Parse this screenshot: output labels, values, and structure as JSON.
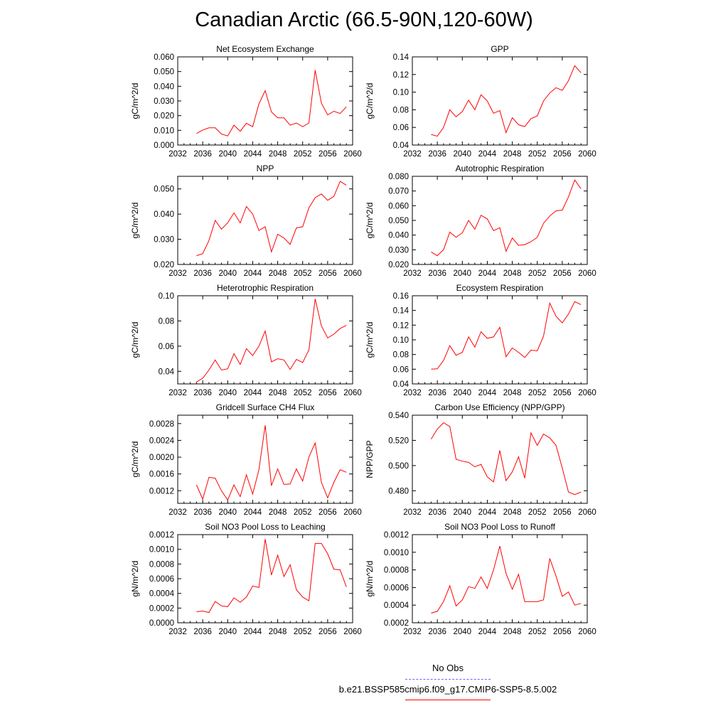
{
  "page": {
    "title": "Canadian Arctic (66.5-90N,120-60W)"
  },
  "legend": {
    "entries": [
      {
        "label": "No Obs",
        "color": "#6666ff",
        "style": "dashed"
      },
      {
        "label": "b.e21.BSSP585cmip6.f09_g17.CMIP6-SSP5-8.5.002",
        "color": "#ff0000",
        "style": "solid"
      }
    ]
  },
  "chart_data": [
    {
      "type": "line",
      "title": "Net Ecosystem Exchange",
      "xlabel": "",
      "ylabel": "gC/m^2/d",
      "xlim": [
        2032,
        2060
      ],
      "xticks": [
        2032,
        2036,
        2040,
        2044,
        2048,
        2052,
        2056,
        2060
      ],
      "ylim": [
        0.0,
        0.06
      ],
      "yticks": [
        "0.000",
        "0.010",
        "0.020",
        "0.030",
        "0.040",
        "0.050",
        "0.060"
      ],
      "series": [
        {
          "color": "#ff0000",
          "x": [
            2035,
            2036,
            2037,
            2038,
            2039,
            2040,
            2041,
            2042,
            2043,
            2044,
            2045,
            2046,
            2047,
            2048,
            2049,
            2050,
            2051,
            2052,
            2053,
            2054,
            2055,
            2056,
            2057,
            2058,
            2059
          ],
          "y": [
            0.0079,
            0.0102,
            0.0117,
            0.0117,
            0.0075,
            0.0062,
            0.0135,
            0.0094,
            0.0148,
            0.0125,
            0.028,
            0.037,
            0.0225,
            0.0185,
            0.0185,
            0.0135,
            0.015,
            0.0125,
            0.015,
            0.051,
            0.0285,
            0.0205,
            0.023,
            0.0215,
            0.026
          ]
        }
      ]
    },
    {
      "type": "line",
      "title": "GPP",
      "xlabel": "",
      "ylabel": "gC/m^2/d",
      "xlim": [
        2032,
        2060
      ],
      "xticks": [
        2032,
        2036,
        2040,
        2044,
        2048,
        2052,
        2056,
        2060
      ],
      "ylim": [
        0.04,
        0.14
      ],
      "yticks": [
        "0.04",
        "0.06",
        "0.08",
        "0.10",
        "0.12",
        "0.14"
      ],
      "series": [
        {
          "color": "#ff0000",
          "x": [
            2035,
            2036,
            2037,
            2038,
            2039,
            2040,
            2041,
            2042,
            2043,
            2044,
            2045,
            2046,
            2047,
            2048,
            2049,
            2050,
            2051,
            2052,
            2053,
            2054,
            2055,
            2056,
            2057,
            2058,
            2059
          ],
          "y": [
            0.052,
            0.05,
            0.06,
            0.08,
            0.072,
            0.078,
            0.091,
            0.08,
            0.097,
            0.09,
            0.076,
            0.079,
            0.054,
            0.071,
            0.063,
            0.061,
            0.07,
            0.073,
            0.09,
            0.099,
            0.105,
            0.102,
            0.113,
            0.13,
            0.122
          ]
        }
      ]
    },
    {
      "type": "line",
      "title": "NPP",
      "xlabel": "",
      "ylabel": "gC/m^2/d",
      "xlim": [
        2032,
        2060
      ],
      "xticks": [
        2032,
        2036,
        2040,
        2044,
        2048,
        2052,
        2056,
        2060
      ],
      "ylim": [
        0.02,
        0.055
      ],
      "yticks": [
        "0.020",
        "0.030",
        "0.040",
        "0.050"
      ],
      "series": [
        {
          "color": "#ff0000",
          "x": [
            2035,
            2036,
            2037,
            2038,
            2039,
            2040,
            2041,
            2042,
            2043,
            2044,
            2045,
            2046,
            2047,
            2048,
            2049,
            2050,
            2051,
            2052,
            2053,
            2054,
            2055,
            2056,
            2057,
            2058,
            2059
          ],
          "y": [
            0.0235,
            0.0243,
            0.0295,
            0.0375,
            0.034,
            0.0365,
            0.0405,
            0.0365,
            0.043,
            0.04,
            0.0335,
            0.035,
            0.025,
            0.032,
            0.0305,
            0.028,
            0.0345,
            0.035,
            0.0425,
            0.0465,
            0.048,
            0.0455,
            0.047,
            0.053,
            0.0515
          ]
        }
      ]
    },
    {
      "type": "line",
      "title": "Autotrophic Respiration",
      "xlabel": "",
      "ylabel": "gC/m^2/d",
      "xlim": [
        2032,
        2060
      ],
      "xticks": [
        2032,
        2036,
        2040,
        2044,
        2048,
        2052,
        2056,
        2060
      ],
      "ylim": [
        0.02,
        0.08
      ],
      "yticks": [
        "0.020",
        "0.030",
        "0.040",
        "0.050",
        "0.060",
        "0.070",
        "0.080"
      ],
      "series": [
        {
          "color": "#ff0000",
          "x": [
            2035,
            2036,
            2037,
            2038,
            2039,
            2040,
            2041,
            2042,
            2043,
            2044,
            2045,
            2046,
            2047,
            2048,
            2049,
            2050,
            2051,
            2052,
            2053,
            2054,
            2055,
            2056,
            2057,
            2058,
            2059
          ],
          "y": [
            0.0285,
            0.026,
            0.03,
            0.042,
            0.0385,
            0.0415,
            0.05,
            0.044,
            0.0535,
            0.051,
            0.043,
            0.045,
            0.029,
            0.038,
            0.033,
            0.0335,
            0.0355,
            0.0385,
            0.048,
            0.053,
            0.0565,
            0.057,
            0.066,
            0.0775,
            0.0715
          ]
        }
      ]
    },
    {
      "type": "line",
      "title": "Heterotrophic Respiration",
      "xlabel": "",
      "ylabel": "gC/m^2/d",
      "xlim": [
        2032,
        2060
      ],
      "xticks": [
        2032,
        2036,
        2040,
        2044,
        2048,
        2052,
        2056,
        2060
      ],
      "ylim": [
        0.03,
        0.1
      ],
      "yticks": [
        "0.04",
        "0.06",
        "0.08",
        "0.10"
      ],
      "series": [
        {
          "color": "#ff0000",
          "x": [
            2035,
            2036,
            2037,
            2038,
            2039,
            2040,
            2041,
            2042,
            2043,
            2044,
            2045,
            2046,
            2047,
            2048,
            2049,
            2050,
            2051,
            2052,
            2053,
            2054,
            2055,
            2056,
            2057,
            2058,
            2059
          ],
          "y": [
            0.0315,
            0.0345,
            0.041,
            0.049,
            0.041,
            0.042,
            0.054,
            0.0455,
            0.058,
            0.0525,
            0.06,
            0.072,
            0.0475,
            0.05,
            0.049,
            0.0415,
            0.0495,
            0.047,
            0.057,
            0.0975,
            0.076,
            0.0665,
            0.0695,
            0.074,
            0.0765
          ]
        }
      ]
    },
    {
      "type": "line",
      "title": "Ecosystem Respiration",
      "xlabel": "",
      "ylabel": "gC/m^2/d",
      "xlim": [
        2032,
        2060
      ],
      "xticks": [
        2032,
        2036,
        2040,
        2044,
        2048,
        2052,
        2056,
        2060
      ],
      "ylim": [
        0.04,
        0.16
      ],
      "yticks": [
        "0.04",
        "0.06",
        "0.08",
        "0.10",
        "0.12",
        "0.14",
        "0.16"
      ],
      "series": [
        {
          "color": "#ff0000",
          "x": [
            2035,
            2036,
            2037,
            2038,
            2039,
            2040,
            2041,
            2042,
            2043,
            2044,
            2045,
            2046,
            2047,
            2048,
            2049,
            2050,
            2051,
            2052,
            2053,
            2054,
            2055,
            2056,
            2057,
            2058,
            2059
          ],
          "y": [
            0.06,
            0.0605,
            0.072,
            0.092,
            0.079,
            0.083,
            0.104,
            0.09,
            0.111,
            0.102,
            0.104,
            0.117,
            0.077,
            0.089,
            0.083,
            0.076,
            0.086,
            0.085,
            0.105,
            0.15,
            0.132,
            0.123,
            0.135,
            0.152,
            0.148
          ]
        }
      ]
    },
    {
      "type": "line",
      "title": "Gridcell Surface CH4 Flux",
      "xlabel": "",
      "ylabel": "gC/m^2/d",
      "xlim": [
        2032,
        2060
      ],
      "xticks": [
        2032,
        2036,
        2040,
        2044,
        2048,
        2052,
        2056,
        2060
      ],
      "ylim": [
        0.0009,
        0.003
      ],
      "yticks": [
        "0.0012",
        "0.0016",
        "0.0020",
        "0.0024",
        "0.0028"
      ],
      "series": [
        {
          "color": "#ff0000",
          "x": [
            2035,
            2036,
            2037,
            2038,
            2039,
            2040,
            2041,
            2042,
            2043,
            2044,
            2045,
            2046,
            2047,
            2048,
            2049,
            2050,
            2051,
            2052,
            2053,
            2054,
            2055,
            2056,
            2057,
            2058,
            2059
          ],
          "y": [
            0.00134,
            0.001,
            0.00152,
            0.0015,
            0.0012,
            0.00098,
            0.00134,
            0.00106,
            0.00158,
            0.00112,
            0.0017,
            0.00276,
            0.00132,
            0.00172,
            0.00135,
            0.00136,
            0.00172,
            0.00143,
            0.002,
            0.00234,
            0.0014,
            0.00103,
            0.0014,
            0.0017,
            0.00164
          ]
        }
      ]
    },
    {
      "type": "line",
      "title": "Carbon Use Efficiency (NPP/GPP)",
      "xlabel": "",
      "ylabel": "NPP/GPP",
      "xlim": [
        2032,
        2060
      ],
      "xticks": [
        2032,
        2036,
        2040,
        2044,
        2048,
        2052,
        2056,
        2060
      ],
      "ylim": [
        0.47,
        0.54
      ],
      "yticks": [
        "0.480",
        "0.500",
        "0.520",
        "0.540"
      ],
      "series": [
        {
          "color": "#ff0000",
          "x": [
            2035,
            2036,
            2037,
            2038,
            2039,
            2040,
            2041,
            2042,
            2043,
            2044,
            2045,
            2046,
            2047,
            2048,
            2049,
            2050,
            2051,
            2052,
            2053,
            2054,
            2055,
            2056,
            2057,
            2058,
            2059
          ],
          "y": [
            0.521,
            0.529,
            0.534,
            0.531,
            0.505,
            0.5035,
            0.5025,
            0.499,
            0.501,
            0.491,
            0.487,
            0.512,
            0.488,
            0.495,
            0.507,
            0.49,
            0.526,
            0.516,
            0.525,
            0.522,
            0.516,
            0.498,
            0.479,
            0.477,
            0.479
          ]
        }
      ]
    },
    {
      "type": "line",
      "title": "Soil NO3 Pool Loss to Leaching",
      "xlabel": "",
      "ylabel": "gN/m^2/d",
      "xlim": [
        2032,
        2060
      ],
      "xticks": [
        2032,
        2036,
        2040,
        2044,
        2048,
        2052,
        2056,
        2060
      ],
      "ylim": [
        0.0,
        0.0012
      ],
      "yticks": [
        "0.0000",
        "0.0002",
        "0.0004",
        "0.0006",
        "0.0008",
        "0.0010",
        "0.0012"
      ],
      "series": [
        {
          "color": "#ff0000",
          "x": [
            2035,
            2036,
            2037,
            2038,
            2039,
            2040,
            2041,
            2042,
            2043,
            2044,
            2045,
            2046,
            2047,
            2048,
            2049,
            2050,
            2051,
            2052,
            2053,
            2054,
            2055,
            2056,
            2057,
            2058,
            2059
          ],
          "y": [
            0.00015,
            0.00016,
            0.00014,
            0.00029,
            0.00023,
            0.00022,
            0.00034,
            0.00028,
            0.00035,
            0.0005,
            0.00048,
            0.00114,
            0.00065,
            0.00092,
            0.00063,
            0.00079,
            0.00045,
            0.00035,
            0.0003,
            0.00108,
            0.00108,
            0.00094,
            0.00073,
            0.00072,
            0.00049
          ]
        }
      ]
    },
    {
      "type": "line",
      "title": "Soil NO3 Pool Loss to Runoff",
      "xlabel": "",
      "ylabel": "gN/m^2/d",
      "xlim": [
        2032,
        2060
      ],
      "xticks": [
        2032,
        2036,
        2040,
        2044,
        2048,
        2052,
        2056,
        2060
      ],
      "ylim": [
        0.0002,
        0.0012
      ],
      "yticks": [
        "0.0002",
        "0.0004",
        "0.0006",
        "0.0008",
        "0.0010",
        "0.0012"
      ],
      "series": [
        {
          "color": "#ff0000",
          "x": [
            2035,
            2036,
            2037,
            2038,
            2039,
            2040,
            2041,
            2042,
            2043,
            2044,
            2045,
            2046,
            2047,
            2048,
            2049,
            2050,
            2051,
            2052,
            2053,
            2054,
            2055,
            2056,
            2057,
            2058,
            2059
          ],
          "y": [
            0.00031,
            0.00033,
            0.00044,
            0.00062,
            0.00039,
            0.00046,
            0.00061,
            0.00059,
            0.00072,
            0.00059,
            0.0008,
            0.00107,
            0.00076,
            0.00058,
            0.00075,
            0.00044,
            0.00044,
            0.00044,
            0.00046,
            0.00093,
            0.00073,
            0.0005,
            0.00055,
            0.0004,
            0.00042
          ]
        }
      ]
    }
  ]
}
